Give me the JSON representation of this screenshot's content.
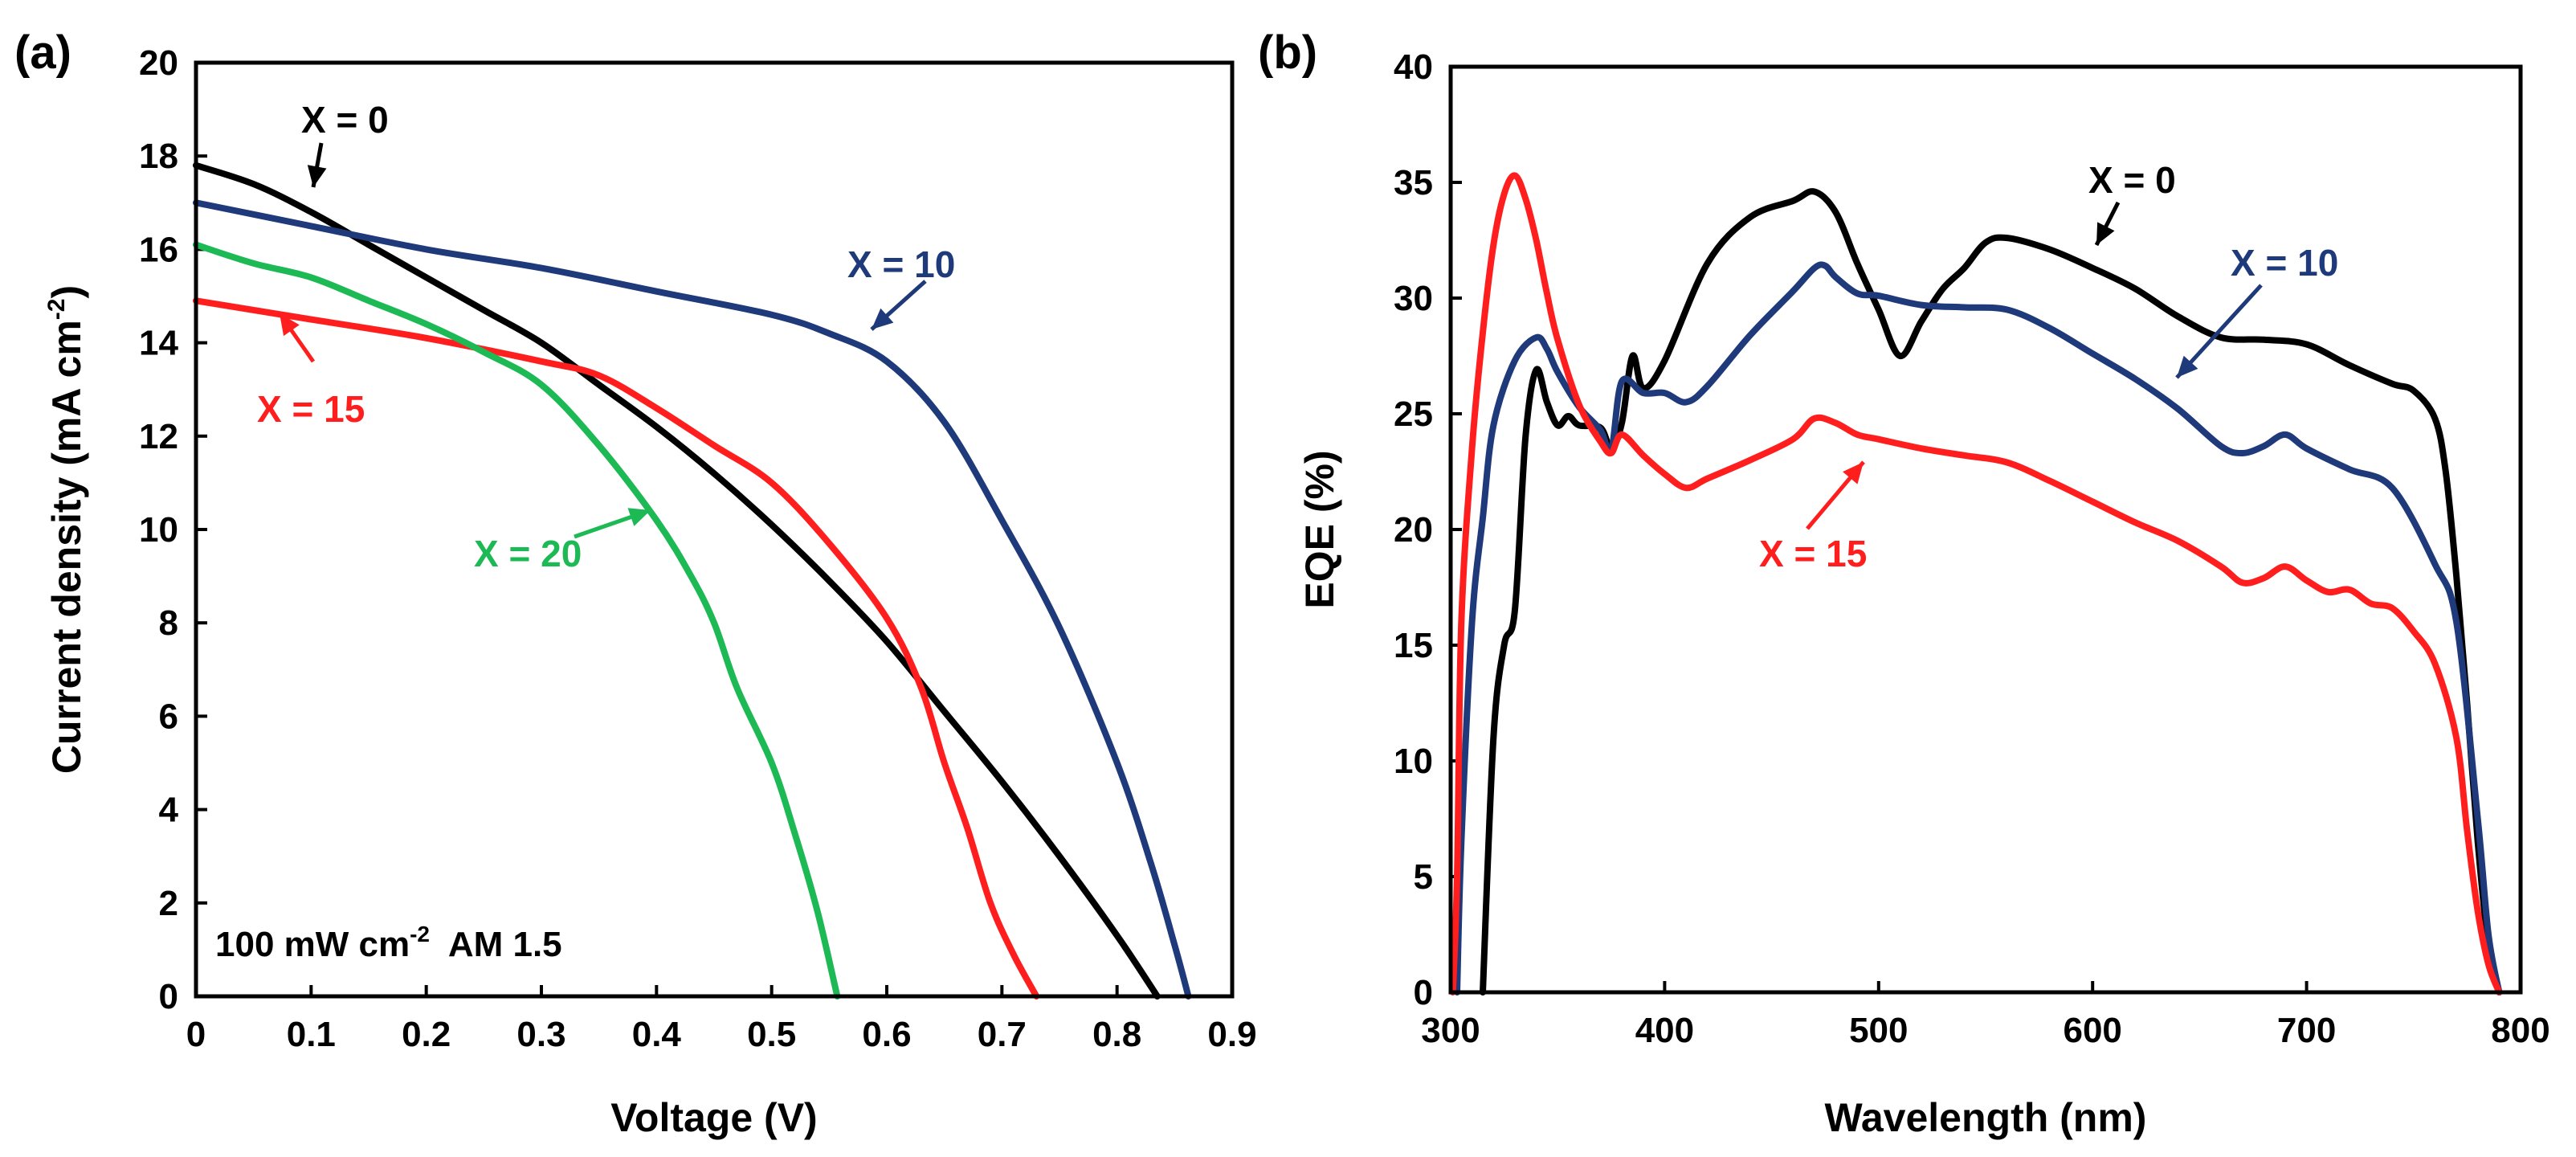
{
  "chart_data": [
    {
      "panel": "(a)",
      "type": "line",
      "xlabel": "Voltage (V)",
      "ylabel": "Current density (mA cm",
      "ylabel_sup": "-2",
      "ylabel_close": ")",
      "xlim": [
        0,
        0.9
      ],
      "ylim": [
        0,
        20
      ],
      "x_ticks": [
        0,
        0.1,
        0.2,
        0.3,
        0.4,
        0.5,
        0.6,
        0.7,
        0.8,
        0.9
      ],
      "x_tick_labels": [
        "0",
        "0.1",
        "0.2",
        "0.3",
        "0.4",
        "0.5",
        "0.6",
        "0.7",
        "0.8",
        "0.9"
      ],
      "y_ticks": [
        0,
        2,
        4,
        6,
        8,
        10,
        12,
        14,
        16,
        18,
        20
      ],
      "y_tick_labels": [
        "0",
        "2",
        "4",
        "6",
        "8",
        "10",
        "12",
        "14",
        "16",
        "18",
        "20"
      ],
      "grid": false,
      "note_main": "100 mW cm",
      "note_sup": "-2",
      "note_tail": "  AM 1.5",
      "series": [
        {
          "name": "X = 0",
          "color": "#000000",
          "x": [
            0,
            0.05,
            0.1,
            0.15,
            0.2,
            0.25,
            0.3,
            0.35,
            0.4,
            0.45,
            0.5,
            0.55,
            0.6,
            0.65,
            0.7,
            0.75,
            0.8,
            0.835
          ],
          "y": [
            17.8,
            17.4,
            16.8,
            16.1,
            15.4,
            14.7,
            14.0,
            13.1,
            12.2,
            11.2,
            10.1,
            8.9,
            7.6,
            6.1,
            4.6,
            3.0,
            1.3,
            0
          ]
        },
        {
          "name": "X = 10",
          "color": "#1f3a7a",
          "x": [
            0,
            0.1,
            0.2,
            0.3,
            0.4,
            0.5,
            0.55,
            0.6,
            0.65,
            0.7,
            0.75,
            0.8,
            0.83,
            0.85,
            0.862
          ],
          "y": [
            17.0,
            16.5,
            16.0,
            15.6,
            15.1,
            14.6,
            14.2,
            13.6,
            12.3,
            10.2,
            7.9,
            5.0,
            2.8,
            1.1,
            0
          ]
        },
        {
          "name": "X = 15",
          "color": "#ff1e1e",
          "x": [
            0,
            0.1,
            0.2,
            0.3,
            0.35,
            0.4,
            0.45,
            0.5,
            0.55,
            0.6,
            0.63,
            0.65,
            0.67,
            0.69,
            0.71,
            0.73
          ],
          "y": [
            14.9,
            14.5,
            14.1,
            13.6,
            13.3,
            12.6,
            11.8,
            11.0,
            9.7,
            8.1,
            6.6,
            5.0,
            3.6,
            2.0,
            0.9,
            0
          ]
        },
        {
          "name": "X = 20",
          "color": "#1db954",
          "x": [
            0,
            0.05,
            0.1,
            0.15,
            0.2,
            0.25,
            0.3,
            0.35,
            0.4,
            0.43,
            0.45,
            0.47,
            0.5,
            0.52,
            0.54,
            0.557
          ],
          "y": [
            16.1,
            15.7,
            15.4,
            14.9,
            14.4,
            13.8,
            13.1,
            11.8,
            10.2,
            9.0,
            8.0,
            6.6,
            5.0,
            3.5,
            1.8,
            0
          ]
        }
      ],
      "annotations": [
        {
          "text": "X = 0",
          "series": "X = 0"
        },
        {
          "text": "X = 10",
          "series": "X = 10"
        },
        {
          "text": "X = 15",
          "series": "X = 15"
        },
        {
          "text": "X = 20",
          "series": "X = 20"
        }
      ]
    },
    {
      "panel": "(b)",
      "type": "line",
      "xlabel": "Wavelength (nm)",
      "ylabel": "EQE (%)",
      "xlim": [
        300,
        800
      ],
      "ylim": [
        0,
        40
      ],
      "x_ticks": [
        300,
        400,
        500,
        600,
        700,
        800
      ],
      "x_tick_labels": [
        "300",
        "400",
        "500",
        "600",
        "700",
        "800"
      ],
      "y_ticks": [
        0,
        5,
        10,
        15,
        20,
        25,
        30,
        35,
        40
      ],
      "y_tick_labels": [
        "0",
        "5",
        "10",
        "15",
        "20",
        "25",
        "30",
        "35",
        "40"
      ],
      "grid": false,
      "series": [
        {
          "name": "X = 0",
          "color": "#000000",
          "x": [
            315,
            320,
            325,
            330,
            335,
            340,
            345,
            350,
            355,
            360,
            370,
            375,
            380,
            385,
            390,
            400,
            420,
            440,
            460,
            470,
            480,
            490,
            500,
            510,
            520,
            530,
            540,
            550,
            560,
            580,
            600,
            620,
            640,
            660,
            680,
            700,
            720,
            740,
            750,
            760,
            765,
            770,
            775,
            780,
            785,
            790
          ],
          "y": [
            0,
            11,
            15,
            16.5,
            24,
            26.9,
            25.5,
            24.5,
            24.9,
            24.5,
            24.4,
            23.5,
            24.6,
            27.5,
            26.1,
            27.3,
            31.5,
            33.5,
            34.2,
            34.6,
            33.7,
            31.5,
            29.5,
            27.5,
            29,
            30.4,
            31.3,
            32.4,
            32.6,
            32.1,
            31.3,
            30.4,
            29.2,
            28.3,
            28.2,
            28.0,
            27.1,
            26.3,
            26.0,
            24.8,
            22.5,
            18,
            12.5,
            6.5,
            2,
            0
          ]
        },
        {
          "name": "X = 10",
          "color": "#1f3a7a",
          "x": [
            303,
            305,
            310,
            315,
            320,
            330,
            340,
            345,
            350,
            360,
            370,
            375,
            380,
            390,
            400,
            410,
            420,
            440,
            460,
            470,
            475,
            480,
            490,
            500,
            520,
            540,
            560,
            580,
            600,
            620,
            640,
            660,
            670,
            680,
            690,
            700,
            720,
            740,
            760,
            770,
            780,
            785,
            790
          ],
          "y": [
            0,
            6.5,
            16,
            20.5,
            24.5,
            27.3,
            28.3,
            27.8,
            26.8,
            25.3,
            24.3,
            23.4,
            26.4,
            25.9,
            25.9,
            25.5,
            26.2,
            28.4,
            30.3,
            31.3,
            31.4,
            30.9,
            30.2,
            30.1,
            29.7,
            29.6,
            29.5,
            28.7,
            27.6,
            26.5,
            25.2,
            23.6,
            23.3,
            23.6,
            24.1,
            23.5,
            22.6,
            21.8,
            18.5,
            16,
            7.5,
            2.5,
            0
          ]
        },
        {
          "name": "X = 15",
          "color": "#ff1e1e",
          "x": [
            301,
            303,
            305,
            310,
            315,
            320,
            325,
            330,
            335,
            340,
            345,
            350,
            360,
            370,
            375,
            380,
            390,
            400,
            410,
            420,
            440,
            460,
            470,
            480,
            490,
            500,
            520,
            540,
            560,
            580,
            600,
            620,
            640,
            660,
            670,
            680,
            690,
            700,
            710,
            720,
            730,
            740,
            750,
            760,
            770,
            775,
            780,
            785,
            790
          ],
          "y": [
            0,
            5,
            16,
            23.5,
            28.5,
            32.3,
            34.5,
            35.3,
            34.3,
            32.5,
            30.2,
            28.2,
            25.4,
            23.8,
            23.3,
            24.1,
            23.2,
            22.4,
            21.8,
            22.2,
            23.0,
            23.9,
            24.8,
            24.6,
            24.1,
            23.9,
            23.5,
            23.2,
            22.9,
            22.1,
            21.2,
            20.3,
            19.5,
            18.4,
            17.7,
            17.9,
            18.4,
            17.8,
            17.3,
            17.4,
            16.8,
            16.6,
            15.6,
            14.2,
            11,
            7,
            3.5,
            1.2,
            0
          ]
        }
      ],
      "annotations": [
        {
          "text": "X = 0",
          "series": "X = 0"
        },
        {
          "text": "X = 10",
          "series": "X = 10"
        },
        {
          "text": "X = 15",
          "series": "X = 15"
        }
      ]
    }
  ],
  "colors": {
    "axis": "#000000",
    "background": "#ffffff"
  }
}
